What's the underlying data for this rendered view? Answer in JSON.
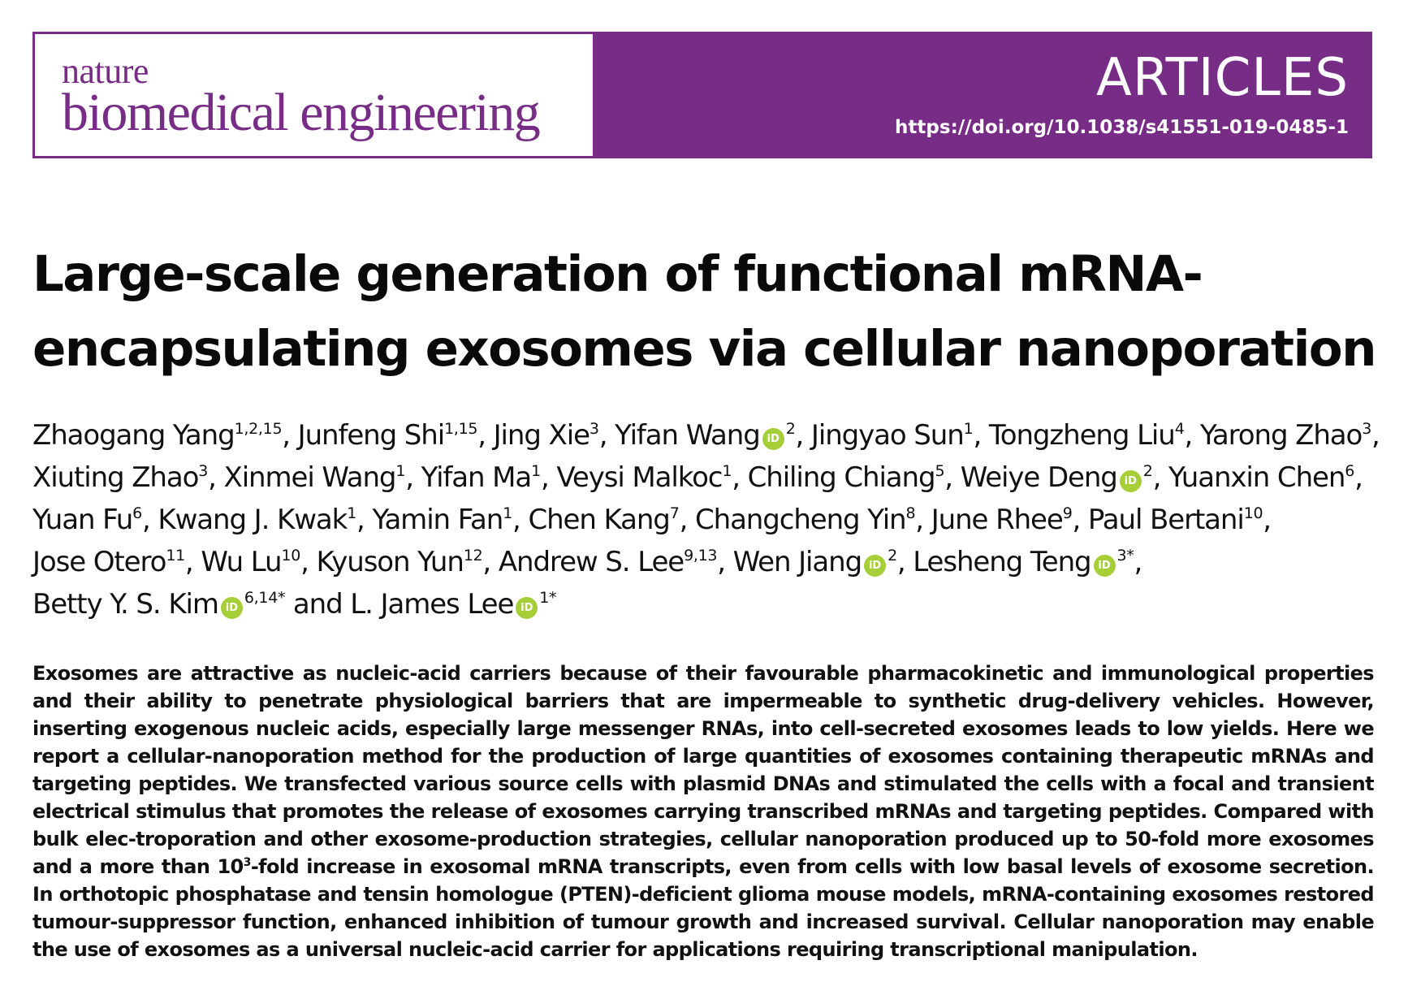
{
  "header": {
    "journal_line1": "nature",
    "journal_line2": "biomedical engineering",
    "section": "ARTICLES",
    "doi": "https://doi.org/10.1038/s41551-019-0485-1",
    "brand_color": "#772c86",
    "orcid_color": "#a6ce39"
  },
  "title": "Large-scale generation of functional mRNA-encapsulating exosomes via cellular nanoporation",
  "authors": [
    {
      "name": "Zhaogang Yang",
      "aff": "1,2,15",
      "orcid": false
    },
    {
      "name": "Junfeng Shi",
      "aff": "1,15",
      "orcid": false
    },
    {
      "name": "Jing Xie",
      "aff": "3",
      "orcid": false
    },
    {
      "name": "Yifan Wang",
      "aff": "2",
      "orcid": true
    },
    {
      "name": "Jingyao Sun",
      "aff": "1",
      "orcid": false
    },
    {
      "name": "Tongzheng Liu",
      "aff": "4",
      "orcid": false
    },
    {
      "name": "Yarong Zhao",
      "aff": "3",
      "orcid": false
    },
    {
      "name": "Xiuting Zhao",
      "aff": "3",
      "orcid": false
    },
    {
      "name": "Xinmei Wang",
      "aff": "1",
      "orcid": false
    },
    {
      "name": "Yifan Ma",
      "aff": "1",
      "orcid": false
    },
    {
      "name": "Veysi Malkoc",
      "aff": "1",
      "orcid": false
    },
    {
      "name": "Chiling Chiang",
      "aff": "5",
      "orcid": false
    },
    {
      "name": "Weiye Deng",
      "aff": "2",
      "orcid": true
    },
    {
      "name": "Yuanxin Chen",
      "aff": "6",
      "orcid": false
    },
    {
      "name": "Yuan Fu",
      "aff": "6",
      "orcid": false
    },
    {
      "name": "Kwang J. Kwak",
      "aff": "1",
      "orcid": false
    },
    {
      "name": "Yamin Fan",
      "aff": "1",
      "orcid": false
    },
    {
      "name": "Chen Kang",
      "aff": "7",
      "orcid": false
    },
    {
      "name": "Changcheng Yin",
      "aff": "8",
      "orcid": false
    },
    {
      "name": "June Rhee",
      "aff": "9",
      "orcid": false
    },
    {
      "name": "Paul Bertani",
      "aff": "10",
      "orcid": false
    },
    {
      "name": "Jose Otero",
      "aff": "11",
      "orcid": false
    },
    {
      "name": "Wu Lu",
      "aff": "10",
      "orcid": false
    },
    {
      "name": "Kyuson Yun",
      "aff": "12",
      "orcid": false
    },
    {
      "name": "Andrew S. Lee",
      "aff": "9,13",
      "orcid": false
    },
    {
      "name": "Wen Jiang",
      "aff": "2",
      "orcid": true
    },
    {
      "name": "Lesheng Teng",
      "aff": "3*",
      "orcid": true
    },
    {
      "name": "Betty Y. S. Kim",
      "aff": "6,14*",
      "orcid": true
    },
    {
      "name": "L. James Lee",
      "aff": "1*",
      "orcid": true
    }
  ],
  "orcid_glyph": "iD",
  "author_separator": ", ",
  "author_final_separator": " and ",
  "abstract": {
    "part1": "Exosomes are attractive as nucleic-acid carriers because of their favourable pharmacokinetic and immunological properties and their ability to penetrate physiological barriers that are impermeable to synthetic drug-delivery vehicles. However, inserting exogenous nucleic acids, especially large messenger RNAs, into cell-secreted exosomes leads to low yields. Here we report a cellular-nanoporation method for the production of large quantities of exosomes containing therapeutic mRNAs and targeting peptides. We transfected various source cells with plasmid DNAs and stimulated the cells with a focal and transient electrical stimulus that promotes the release of exosomes carrying transcribed mRNAs and targeting peptides. Compared with bulk elec-troporation and other exosome-production strategies, cellular nanoporation produced up to 50-fold more exosomes and a more than 10",
    "superscript": "3",
    "part2": "-fold increase in exosomal mRNA transcripts, even from cells with low basal levels of exosome secretion. In orthotopic phosphatase and tensin homologue (PTEN)-deficient glioma mouse models, mRNA-containing exosomes restored tumour-suppressor function, enhanced inhibition of tumour growth and increased survival. Cellular nanoporation may enable the use of exosomes as a universal nucleic-acid carrier for applications requiring transcriptional manipulation."
  }
}
